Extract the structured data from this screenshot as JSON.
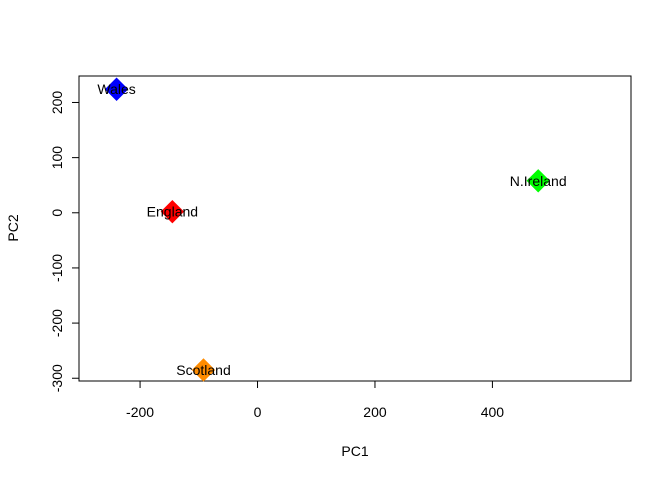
{
  "chart_data": {
    "type": "scatter",
    "title": "",
    "xlabel": "PC1",
    "ylabel": "PC2",
    "xlim": [
      -304,
      636
    ],
    "ylim": [
      -305,
      248
    ],
    "xticks": [
      -200,
      0,
      200,
      400
    ],
    "xtick_labels": [
      "-200",
      "0",
      "200",
      "400"
    ],
    "yticks": [
      -300,
      -200,
      -100,
      0,
      100,
      200
    ],
    "ytick_labels": [
      "-300",
      "-200",
      "-100",
      "0",
      "100",
      "200"
    ],
    "grid": false,
    "marker": "diamond",
    "points": [
      {
        "label": "England",
        "x": -145,
        "y": 2,
        "color": "#ff0000"
      },
      {
        "label": "Wales",
        "x": -240,
        "y": 224,
        "color": "#0000ff"
      },
      {
        "label": "Scotland",
        "x": -92,
        "y": -285,
        "color": "#ff8c00"
      },
      {
        "label": "N.Ireland",
        "x": 478,
        "y": 58,
        "color": "#00ff00"
      }
    ]
  }
}
